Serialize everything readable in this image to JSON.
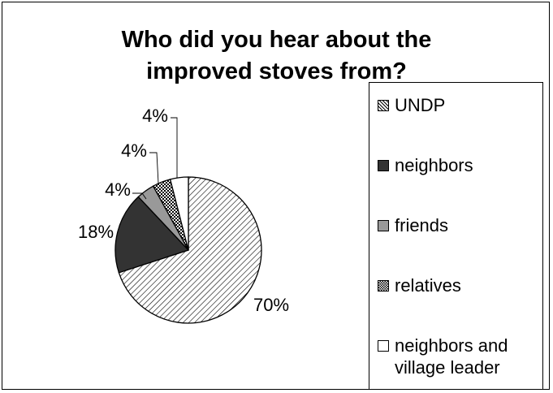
{
  "chart_data": {
    "type": "pie",
    "title": "Who did you hear about the improved stoves from?",
    "title_lines": [
      "Who did you hear about the",
      "improved stoves from?"
    ],
    "slices": [
      {
        "label": "UNDP",
        "value": 70,
        "label_text": "70%",
        "pattern": "diagonal-hatch"
      },
      {
        "label": "neighbors",
        "value": 18,
        "label_text": "18%",
        "pattern": "solid-dark"
      },
      {
        "label": "friends",
        "value": 4,
        "label_text": "4%",
        "pattern": "solid-gray"
      },
      {
        "label": "relatives",
        "value": 4,
        "label_text": "4%",
        "pattern": "crosshatch"
      },
      {
        "label": "neighbors and village leader",
        "value": 4,
        "label_text": "4%",
        "pattern": "white"
      }
    ],
    "legend_position": "right",
    "colors": {
      "dark": "#333333",
      "gray": "#999999",
      "white": "#ffffff",
      "outline": "#000000"
    }
  },
  "legend": {
    "items": [
      {
        "label": "UNDP"
      },
      {
        "label": "neighbors"
      },
      {
        "label": "friends"
      },
      {
        "label": "relatives"
      },
      {
        "label": "neighbors and\nvillage leader"
      }
    ]
  }
}
